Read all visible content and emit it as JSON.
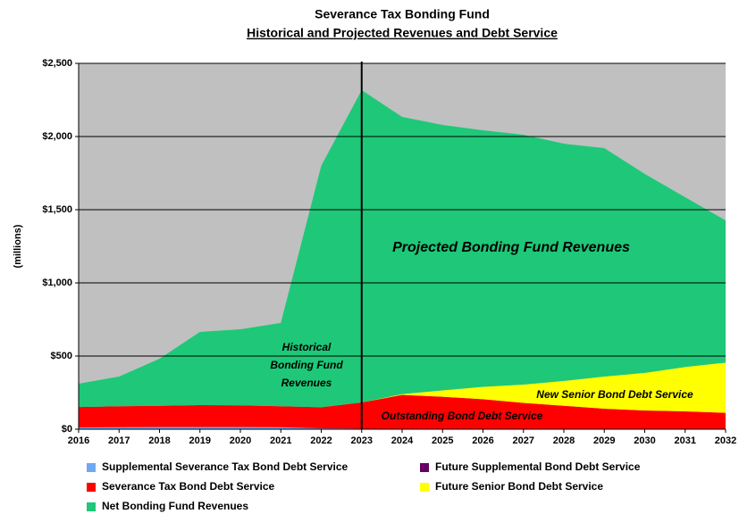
{
  "chart_data": {
    "type": "stacked_area",
    "title": "Severance Tax Bonding Fund",
    "subtitle": "Historical and Projected Revenues and Debt Service",
    "y_label": "(millions)",
    "x": [
      2016,
      2017,
      2018,
      2019,
      2020,
      2021,
      2022,
      2023,
      2024,
      2025,
      2026,
      2027,
      2028,
      2029,
      2030,
      2031,
      2032
    ],
    "xlim": [
      2016,
      2032
    ],
    "xticks": [
      2016,
      2017,
      2018,
      2019,
      2020,
      2021,
      2022,
      2023,
      2024,
      2025,
      2026,
      2027,
      2028,
      2029,
      2030,
      2031,
      2032
    ],
    "ylim": [
      0,
      2500
    ],
    "yticks": [
      {
        "value": 0,
        "label": "$0"
      },
      {
        "value": 500,
        "label": "$500"
      },
      {
        "value": 1000,
        "label": "$1,000"
      },
      {
        "value": 1500,
        "label": "$1,500"
      },
      {
        "value": 2000,
        "label": "$2,000"
      },
      {
        "value": 2500,
        "label": "$2,500"
      }
    ],
    "grid": true,
    "divider_x": 2023,
    "series": [
      {
        "name": "Supplemental Severance Tax Bond Debt Service",
        "color": "#6fa8f0",
        "values": [
          12,
          14,
          15,
          15,
          15,
          14,
          6,
          4,
          2,
          2,
          2,
          1,
          1,
          1,
          0,
          0,
          0
        ]
      },
      {
        "name": "Severance Tax Bond Debt Service",
        "color": "#ff0000",
        "values": [
          140,
          143,
          145,
          150,
          148,
          143,
          144,
          179,
          233,
          220,
          203,
          179,
          159,
          139,
          128,
          122,
          112
        ]
      },
      {
        "name": "Future Supplemental Bond Debt Service",
        "color": "#660066",
        "values": [
          0,
          0,
          0,
          0,
          0,
          0,
          0,
          0,
          0,
          0,
          0,
          0,
          0,
          0,
          0,
          0,
          0
        ]
      },
      {
        "name": "Future Senior Bond Debt Service",
        "color": "#ffff00",
        "values": [
          0,
          0,
          0,
          0,
          0,
          0,
          0,
          0,
          5,
          43,
          85,
          125,
          170,
          220,
          257,
          303,
          343
        ]
      },
      {
        "name": "Net Bonding Fund Revenues",
        "color": "#1ec878",
        "values": [
          159,
          203,
          322,
          500,
          520,
          569,
          1650,
          2134,
          1894,
          1814,
          1753,
          1707,
          1621,
          1561,
          1360,
          1160,
          972
        ]
      }
    ],
    "annotations": [
      {
        "lines": [
          "Historical",
          "Bonding Fund",
          "Revenues"
        ]
      },
      {
        "lines": [
          "Projected Bonding Fund Revenues"
        ]
      },
      {
        "lines": [
          "New Senior Bond Debt Service"
        ]
      },
      {
        "lines": [
          "Outstanding Bond Debt Service"
        ]
      }
    ]
  }
}
